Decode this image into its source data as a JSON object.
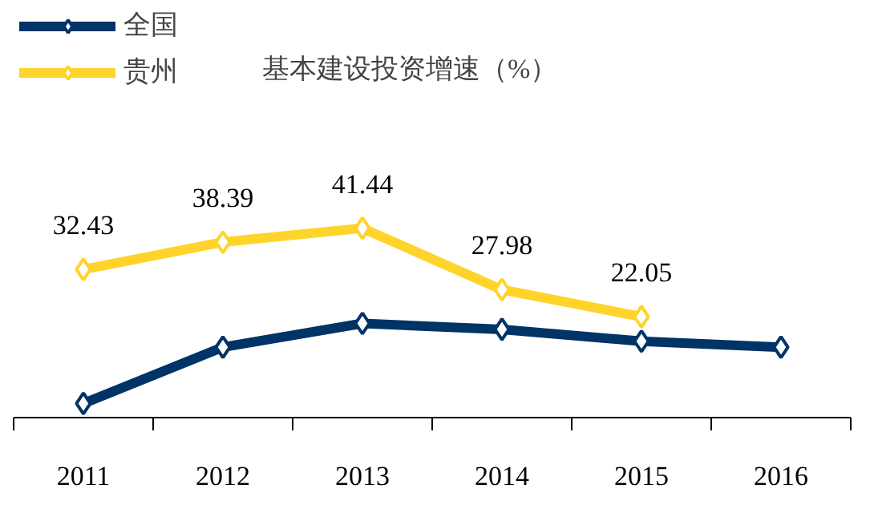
{
  "chart_data": {
    "type": "line",
    "title": "基本建设投资增速（%）",
    "categories": [
      "2011",
      "2012",
      "2013",
      "2014",
      "2015",
      "2016"
    ],
    "series": [
      {
        "name": "全国",
        "color": "#003366",
        "values": [
          3.1,
          15.4,
          20.6,
          19.3,
          16.7,
          15.4
        ]
      },
      {
        "name": "贵州",
        "color": "#ffd42a",
        "values": [
          32.43,
          38.39,
          41.44,
          27.98,
          22.05,
          null
        ],
        "value_labels": [
          "32.43",
          "38.39",
          "41.44",
          "27.98",
          "22.05",
          null
        ]
      }
    ],
    "tick_labels": "x",
    "grid": false,
    "legend": "top left",
    "marker": "diamond",
    "line_style": "solid"
  }
}
